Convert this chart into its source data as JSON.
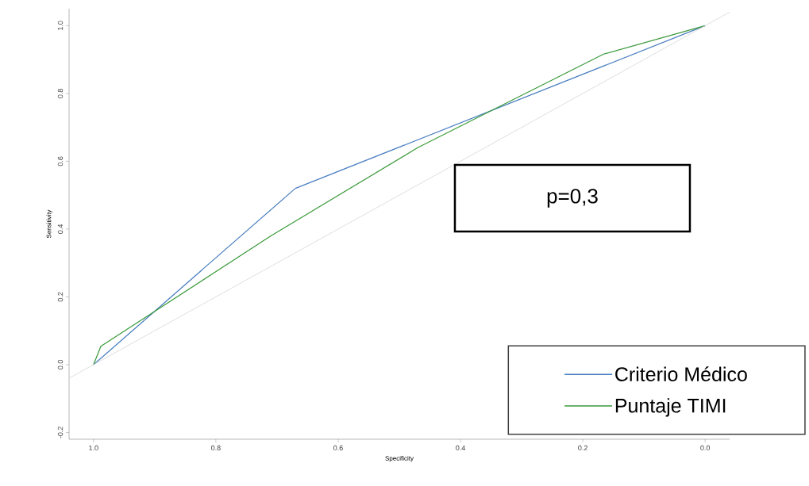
{
  "chart_data": {
    "type": "line",
    "xlabel": "Specificity",
    "ylabel": "Sensitivity",
    "xlim": [
      1.04,
      -0.04
    ],
    "ylim": [
      -0.22,
      1.05
    ],
    "xticks": [
      {
        "value": 1.0,
        "label": "1.0"
      },
      0.8,
      0.6,
      0.4,
      0.2,
      {
        "value": 0.0,
        "label": "0.0"
      }
    ],
    "yticks": [
      -0.2,
      {
        "value": 0.0,
        "label": "0.0"
      },
      0.2,
      0.4,
      0.6,
      0.8,
      {
        "value": 1.0,
        "label": "1.0"
      }
    ],
    "series": [
      {
        "name": "Criterio Médico",
        "color": "#4a7fc1",
        "x": [
          1.0,
          0.67,
          0.0
        ],
        "values": [
          0.0,
          0.52,
          1.0
        ]
      },
      {
        "name": "Puntaje TIMI",
        "color": "#3a9a3a",
        "x": [
          1.0,
          0.988,
          0.71,
          0.47,
          0.166,
          0.0
        ],
        "values": [
          0.0,
          0.054,
          0.38,
          0.64,
          0.916,
          1.0
        ]
      },
      {
        "color": "#d6d6d6",
        "x": [
          1.04,
          -0.04
        ],
        "values": [
          -0.04,
          1.04
        ]
      }
    ],
    "legend": "bottom right",
    "annotations": [
      "p=0,3"
    ]
  }
}
